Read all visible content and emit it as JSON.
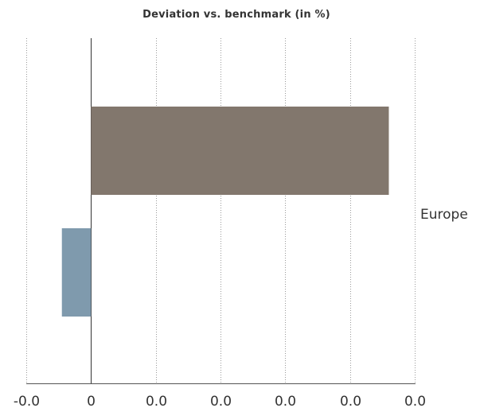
{
  "chart_data": {
    "type": "bar",
    "orientation": "horizontal",
    "title": "Deviation vs. benchmark (in %)",
    "categories": [
      "Europe"
    ],
    "series": [
      {
        "values": [
          0.046
        ],
        "color": "#82776d"
      },
      {
        "values": [
          -0.0045
        ],
        "color": "#7f9aad"
      }
    ],
    "x_ticks": [
      -0.01,
      0,
      0.01,
      0.02,
      0.03,
      0.04,
      0.05
    ],
    "x_tick_labels": [
      "-0.0",
      "0",
      "0.0",
      "0.0",
      "0.0",
      "0.0",
      "0.0"
    ],
    "xlim": [
      -0.01,
      0.05
    ],
    "xlabel": "",
    "ylabel": "",
    "grid": true,
    "legend": "none"
  }
}
